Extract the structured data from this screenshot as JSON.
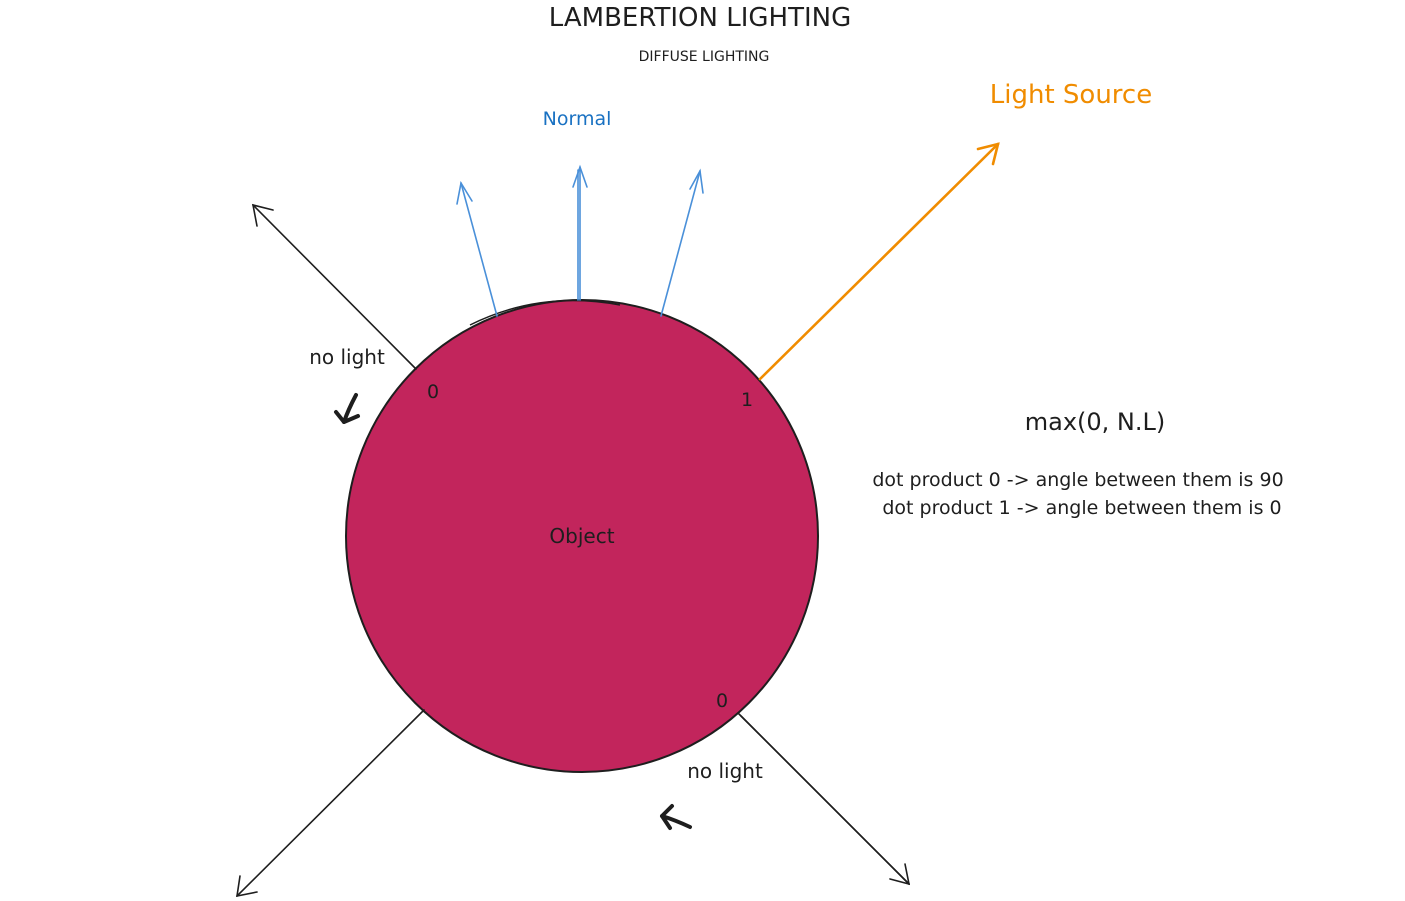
{
  "title": "LAMBERTION LIGHTING",
  "subtitle": "DIFFUSE LIGHTING",
  "labels": {
    "normal": "Normal",
    "light_source": "Light Source",
    "object": "Object",
    "no_light_top": "no light",
    "no_light_bottom": "no light",
    "value_top_left": "0",
    "value_top_right": "1",
    "value_bottom_right": "0"
  },
  "formula": "max(0, N.L)",
  "notes": {
    "line1": "dot product 0 -> angle between them is 90",
    "line2": "dot product 1 -> angle between them is 0"
  },
  "colors": {
    "object_fill": "#c2255c",
    "normal_arrows": "#4a90d9",
    "normal_label": "#1971c2",
    "light_source": "#f08c00",
    "ink": "#1e1e1e"
  }
}
